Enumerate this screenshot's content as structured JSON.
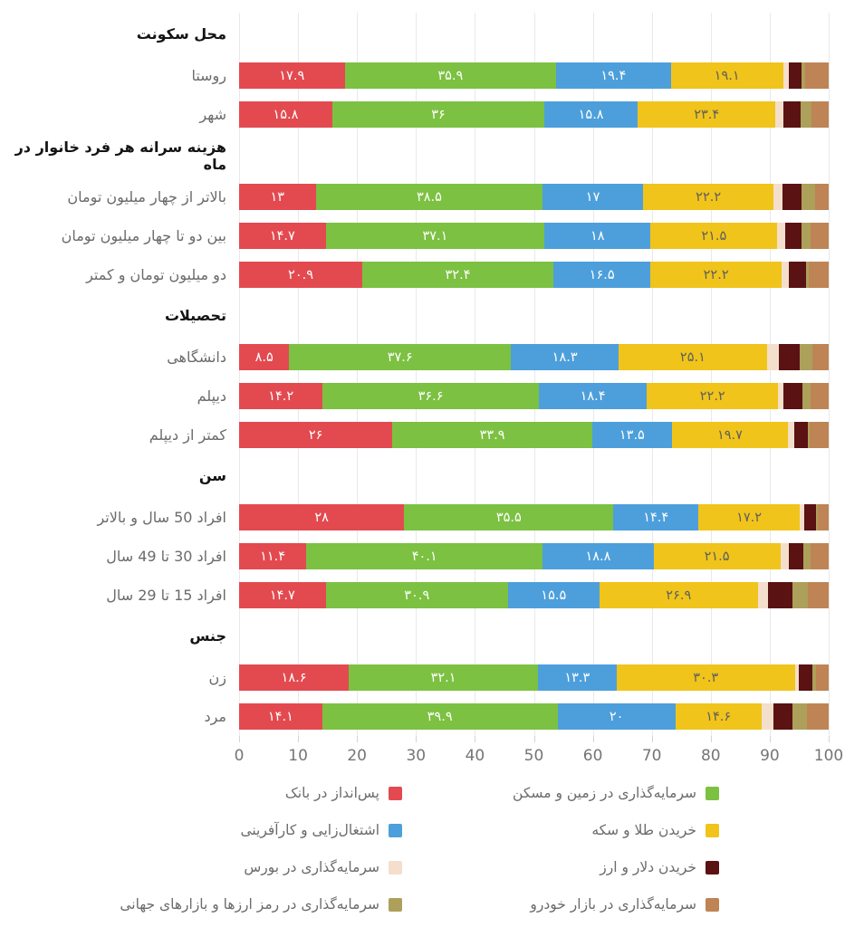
{
  "chart_data": {
    "type": "bar",
    "variant": "horizontal-stacked-100",
    "direction": "rtl",
    "title": "",
    "x_axis": {
      "min": 0,
      "max": 100,
      "ticks": [
        "0",
        "10",
        "20",
        "30",
        "40",
        "50",
        "60",
        "70",
        "80",
        "90",
        "100"
      ],
      "grid": true
    },
    "series": [
      {
        "name": "پس‌انداز در بانک",
        "color": "#E24A50",
        "label_color": "#ffffff"
      },
      {
        "name": "سرمایه‌گذاری در زمین و مسکن",
        "color": "#7CC142",
        "label_color": "#ffffff"
      },
      {
        "name": "اشتغال‌زایی و کارآفرینی",
        "color": "#4D9FDB",
        "label_color": "#ffffff"
      },
      {
        "name": "خریدن طلا و سکه",
        "color": "#F0C41B",
        "label_color": "#5f5f5f"
      },
      {
        "name": "سرمایه‌گذاری در بورس",
        "color": "#F4DFCC",
        "label_color": ""
      },
      {
        "name": "خریدن دلار و ارز",
        "color": "#5A1212",
        "label_color": ""
      },
      {
        "name": "سرمایه‌گذاری در رمز ارزها و بازارهای جهانی",
        "color": "#ACA05A",
        "label_color": ""
      },
      {
        "name": "سرمایه‌گذاری در بازار خودرو",
        "color": "#BE8455",
        "label_color": ""
      }
    ],
    "labeled_series_count": 4,
    "legend_order": [
      1,
      0,
      3,
      2,
      5,
      4,
      7,
      6
    ],
    "legend_position": "bottom",
    "groups": [
      {
        "header": "محل سکونت",
        "rows": [
          {
            "label": "روستا",
            "values": [
              17.9,
              35.9,
              19.4,
              19.1,
              1.0,
              2.1,
              0.6,
              4.0
            ]
          },
          {
            "label": "شهر",
            "values": [
              15.8,
              36,
              15.8,
              23.4,
              1.4,
              2.8,
              1.9,
              2.9
            ]
          }
        ]
      },
      {
        "header": "هزینه سرانه هر فرد خانوار در ماه",
        "rows": [
          {
            "label": "بالاتر از چهار میلیون تومان",
            "values": [
              13,
              38.5,
              17,
              22.2,
              1.5,
              3.2,
              2.3,
              2.3
            ]
          },
          {
            "label": "بین دو تا چهار میلیون تومان",
            "values": [
              14.7,
              37.1,
              18,
              21.5,
              1.3,
              2.8,
              1.5,
              3.1
            ]
          },
          {
            "label": "دو میلیون تومان و کمتر",
            "values": [
              20.9,
              32.4,
              16.5,
              22.2,
              1.3,
              2.8,
              0.5,
              3.4
            ]
          }
        ]
      },
      {
        "header": "تحصیلات",
        "rows": [
          {
            "label": "دانشگاهی",
            "values": [
              8.5,
              37.6,
              18.3,
              25.1,
              2.0,
              3.6,
              2.2,
              2.7
            ]
          },
          {
            "label": "دیپلم",
            "values": [
              14.2,
              36.6,
              18.4,
              22.2,
              0.9,
              3.2,
              1.4,
              3.1
            ]
          },
          {
            "label": "کمتر از دیپلم",
            "values": [
              26,
              33.9,
              13.5,
              19.7,
              1.1,
              2.2,
              0.4,
              3.2
            ]
          }
        ]
      },
      {
        "header": "سن",
        "rows": [
          {
            "label": "افراد 50 سال و بالاتر",
            "values": [
              28,
              35.5,
              14.4,
              17.2,
              0.7,
              2.0,
              0.3,
              1.9
            ]
          },
          {
            "label": "افراد 30 تا 49 سال",
            "values": [
              11.4,
              40.1,
              18.8,
              21.5,
              1.4,
              2.5,
              1.2,
              3.1
            ]
          },
          {
            "label": "افراد 15 تا 29 سال",
            "values": [
              14.7,
              30.9,
              15.5,
              26.9,
              1.7,
              4.1,
              2.7,
              3.5
            ]
          }
        ]
      },
      {
        "header": "جنس",
        "rows": [
          {
            "label": "زن",
            "values": [
              18.6,
              32.1,
              13.3,
              30.3,
              0.7,
              2.3,
              0.5,
              2.2
            ]
          },
          {
            "label": "مرد",
            "values": [
              14.1,
              39.9,
              20,
              14.6,
              2.0,
              3.3,
              2.5,
              3.6
            ]
          }
        ]
      }
    ]
  }
}
